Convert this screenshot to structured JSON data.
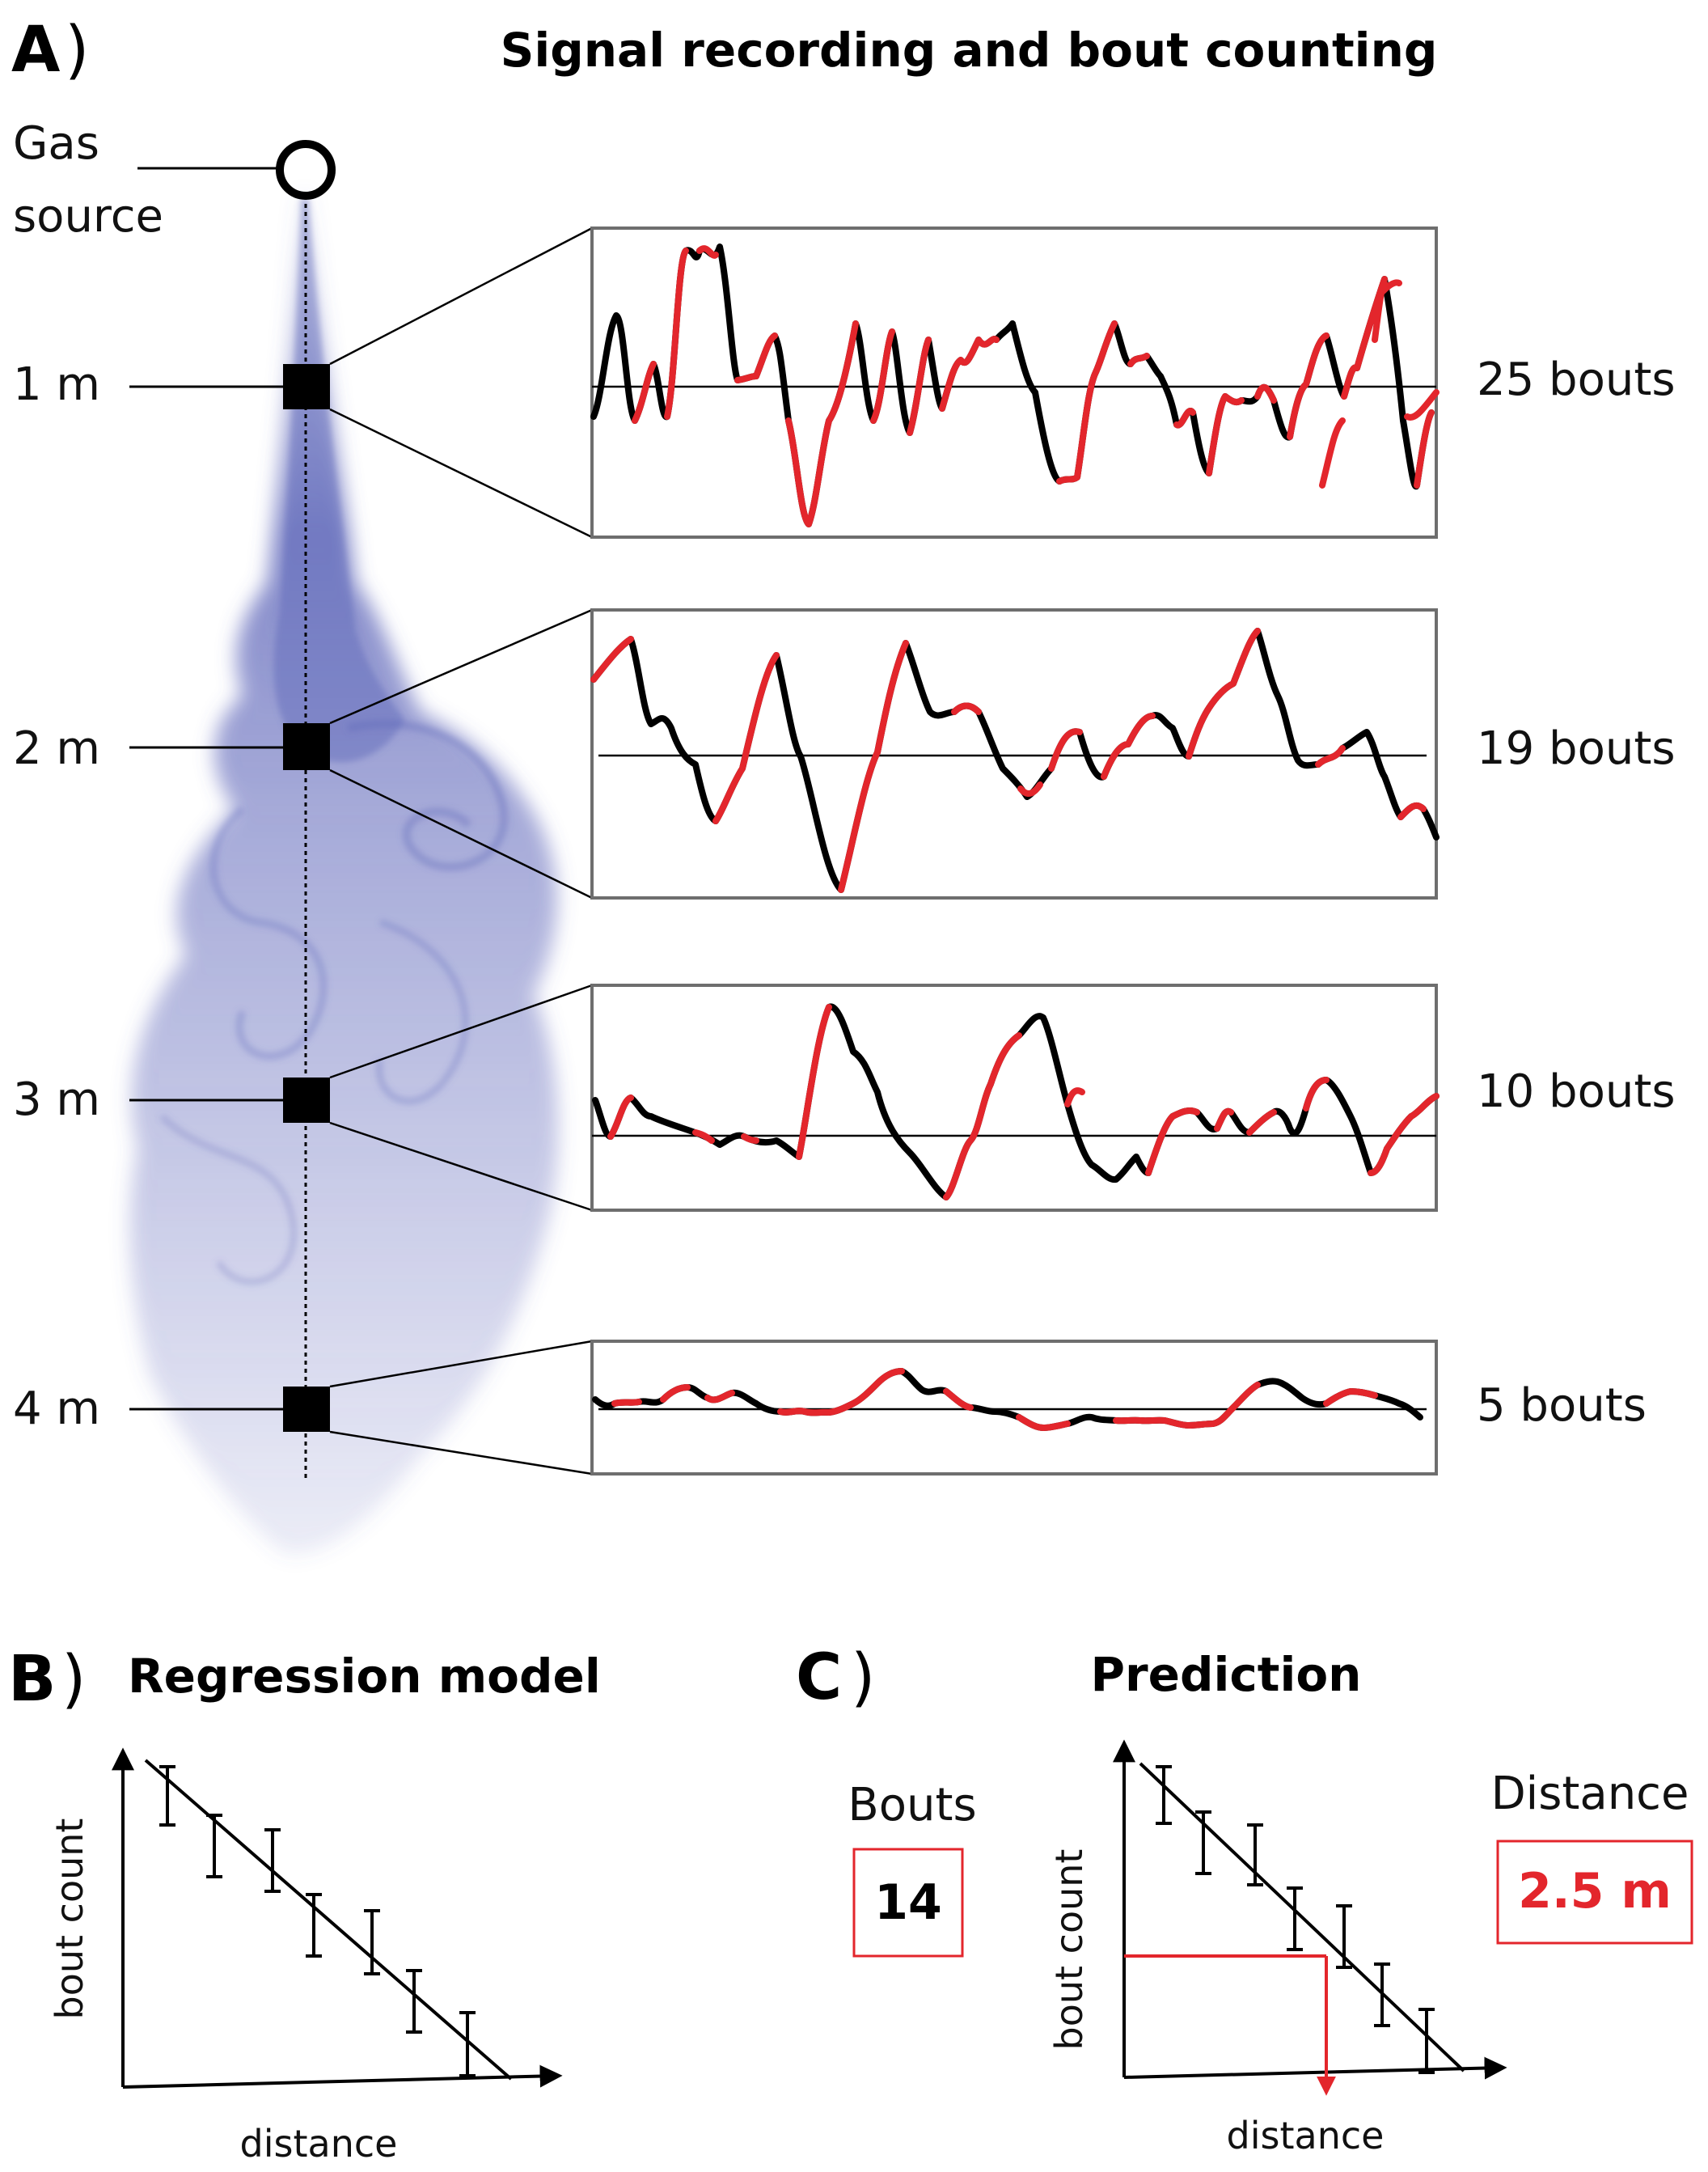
{
  "panel_a": {
    "letter": "A",
    "paren": ")",
    "title": "Signal recording and bout counting",
    "source_label_line1": "Gas",
    "source_label_line2": "source",
    "sensors": [
      {
        "distance_label": "1 m",
        "bouts_label": "25 bouts"
      },
      {
        "distance_label": "2 m",
        "bouts_label": "19 bouts"
      },
      {
        "distance_label": "3 m",
        "bouts_label": "10 bouts"
      },
      {
        "distance_label": "4 m",
        "bouts_label": "5 bouts"
      }
    ]
  },
  "panel_b": {
    "letter": "B",
    "paren": ")",
    "title": "Regression model",
    "ylabel": "bout count",
    "xlabel": "distance"
  },
  "panel_c": {
    "letter": "C",
    "paren": ")",
    "title": "Prediction",
    "bouts_heading": "Bouts",
    "bouts_value": "14",
    "distance_heading": "Distance",
    "distance_value": "2.5 m",
    "ylabel": "bout count",
    "xlabel": "distance"
  },
  "colors": {
    "plume": "#5b63b8",
    "bout_highlight": "#e3262c",
    "signal": "#000000",
    "box_border": "#6e6e6e"
  }
}
